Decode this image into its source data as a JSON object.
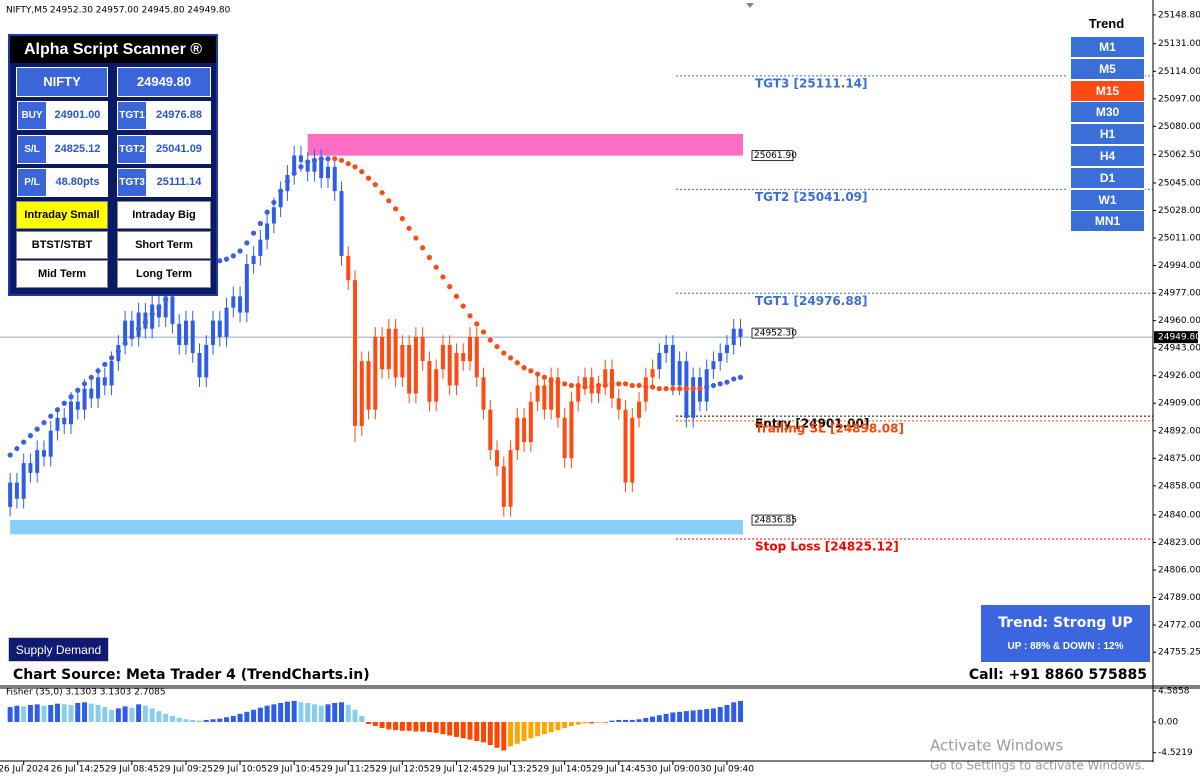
{
  "header": {
    "symbol": "NIFTY,M5",
    "ohlc": "24952.30 24957.00 24945.80 24949.80"
  },
  "scanner": {
    "title": "Alpha Script Scanner ®",
    "symbol": "NIFTY",
    "price": "24949.80",
    "rows": [
      [
        "BUY",
        "24901.00",
        "TGT1",
        "24976.88"
      ],
      [
        "S/L",
        "24825.12",
        "TGT2",
        "25041.09"
      ],
      [
        "P/L",
        "48.80pts",
        "TGT3",
        "25111.14"
      ]
    ],
    "buttons": [
      "Intraday Small",
      "Intraday Big",
      "BTST/STBT",
      "Short Term",
      "Mid Term",
      "Long Term"
    ],
    "active_button": 0,
    "active_color": "#ffff00"
  },
  "supply_demand_button": "Supply Demand",
  "trend_panel": {
    "title": "Trend",
    "timeframes": [
      "M1",
      "M5",
      "M15",
      "M30",
      "H1",
      "H4",
      "D1",
      "W1",
      "MN1"
    ],
    "active": 2,
    "color": "#3b6fd8",
    "active_color": "#ff4a12"
  },
  "trend_box": {
    "title": "Trend: Strong UP",
    "detail": "UP : 88% & DOWN : 12%"
  },
  "footer": {
    "source": "Chart Source: Meta Trader 4 (TrendCharts.in)",
    "call": "Call: +91 8860 575885"
  },
  "watermark": {
    "title": "Activate Windows",
    "detail": "Go to Settings to activate Windows."
  },
  "chart_data": [
    {
      "type": "candlestick",
      "xlim": [
        -1.5,
        169
      ],
      "ylim": [
        24735,
        25158
      ],
      "xticks": [
        {
          "value": 2,
          "label": "26 Jul 2024"
        },
        {
          "value": 10,
          "label": "26 Jul 14:25"
        },
        {
          "value": 18,
          "label": "29 Jul 08:45"
        },
        {
          "value": 26,
          "label": "29 Jul 09:25"
        },
        {
          "value": 34,
          "label": "29 Jul 10:05"
        },
        {
          "value": 42,
          "label": "29 Jul 10:45"
        },
        {
          "value": 50,
          "label": "29 Jul 11:25"
        },
        {
          "value": 58,
          "label": "29 Jul 12:05"
        },
        {
          "value": 66,
          "label": "29 Jul 12:45"
        },
        {
          "value": 74,
          "label": "29 Jul 13:25"
        },
        {
          "value": 82,
          "label": "29 Jul 14:05"
        },
        {
          "value": 90,
          "label": "29 Jul 14:45"
        },
        {
          "value": 98,
          "label": "30 Jul 09:00"
        },
        {
          "value": 106,
          "label": "30 Jul 09:40"
        }
      ],
      "yticks": [
        {
          "value": 25148.8,
          "label": "25148.80"
        },
        {
          "value": 25131,
          "label": "25131.00"
        },
        {
          "value": 25114,
          "label": "25114.00"
        },
        {
          "value": 25097,
          "label": "25097.00"
        },
        {
          "value": 25080,
          "label": "25080.00"
        },
        {
          "value": 25062.5,
          "label": "25062.50"
        },
        {
          "value": 25045,
          "label": "25045.00"
        },
        {
          "value": 25028,
          "label": "25028.00"
        },
        {
          "value": 25011,
          "label": "25011.00"
        },
        {
          "value": 24994,
          "label": "24994.00"
        },
        {
          "value": 24977,
          "label": "24977.00"
        },
        {
          "value": 24960,
          "label": "24960.00"
        },
        {
          "value": 24943,
          "label": "24943.00"
        },
        {
          "value": 24926,
          "label": "24926.00"
        },
        {
          "value": 24909,
          "label": "24909.00"
        },
        {
          "value": 24892,
          "label": "24892.00"
        },
        {
          "value": 24875,
          "label": "24875.00"
        },
        {
          "value": 24858,
          "label": "24858.00"
        },
        {
          "value": 24840,
          "label": "24840.00"
        },
        {
          "value": 24823,
          "label": "24823.00"
        },
        {
          "value": 24806,
          "label": "24806.00"
        },
        {
          "value": 24789,
          "label": "24789.00"
        },
        {
          "value": 24772,
          "label": "24772.00"
        },
        {
          "value": 24755.25,
          "label": "24755.25"
        }
      ],
      "series": [
        {
          "x0": 0,
          "color": "#2f5ce8",
          "open": [
            24845,
            24860,
            24850,
            24872,
            24866,
            24880,
            24876,
            24892,
            24900,
            24896,
            24910,
            24905,
            24918,
            24912,
            24925,
            24920,
            24935,
            24945,
            24960,
            24950,
            24965,
            24955,
            24970,
            24962,
            24975,
            24958,
            24945,
            24960,
            24940,
            24925,
            24945,
            24960,
            24950,
            24968,
            24975,
            24965,
            24995,
            25000,
            25010,
            25020,
            25030,
            25040,
            25050,
            25062,
            25058,
            25052,
            25060,
            25048,
            25055,
            25040
          ],
          "high": [
            24866,
            24866,
            24878,
            24878,
            24886,
            24886,
            24898,
            24906,
            24906,
            24916,
            24916,
            24924,
            24924,
            24931,
            24931,
            24941,
            24951,
            24966,
            24966,
            24971,
            24971,
            24976,
            24976,
            24981,
            24981,
            24964,
            24966,
            24966,
            24946,
            24951,
            24966,
            24966,
            24974,
            24981,
            24981,
            25001,
            25006,
            25016,
            25026,
            25036,
            25046,
            25056,
            25068,
            25068,
            25064,
            25066,
            25066,
            25061,
            25061,
            25046
          ],
          "low": [
            24839,
            24844,
            24844,
            24860,
            24860,
            24870,
            24870,
            24886,
            24890,
            24890,
            24899,
            24899,
            24906,
            24906,
            24914,
            24914,
            24929,
            24939,
            24944,
            24944,
            24949,
            24949,
            24956,
            24956,
            24952,
            24939,
            24939,
            24934,
            24919,
            24919,
            24939,
            24944,
            24944,
            24962,
            24959,
            24959,
            24989,
            24994,
            25004,
            25014,
            25024,
            25034,
            25044,
            25052,
            25046,
            25046,
            25042,
            25042,
            25034,
            24994
          ],
          "close": [
            24860,
            24850,
            24872,
            24866,
            24880,
            24876,
            24892,
            24900,
            24896,
            24910,
            24905,
            24918,
            24912,
            24925,
            24920,
            24935,
            24945,
            24960,
            24950,
            24965,
            24955,
            24970,
            24962,
            24975,
            24958,
            24945,
            24960,
            24940,
            24925,
            24945,
            24960,
            24950,
            24968,
            24975,
            24965,
            24995,
            25000,
            25010,
            25020,
            25030,
            25040,
            25050,
            25062,
            25058,
            25052,
            25060,
            25048,
            25055,
            25040,
            25000
          ]
        },
        {
          "x0": 50,
          "color": "#ff4a12",
          "open": [
            25000,
            24985,
            24895,
            24935,
            24905,
            24950,
            24930,
            24955,
            24925,
            24945,
            24915,
            24950,
            24935,
            24910,
            24930,
            24945,
            24920,
            24940,
            24935,
            24950,
            24925,
            24905,
            24880,
            24870,
            24845,
            24880,
            24900,
            24885,
            24910,
            24920,
            24905,
            24925,
            24900,
            24875,
            24910,
            24920,
            24925,
            24915,
            24920,
            24930,
            24912,
            24905,
            24860,
            24900,
            24910,
            24925
          ],
          "high": [
            25006,
            24991,
            24941,
            24941,
            24956,
            24956,
            24961,
            24961,
            24951,
            24951,
            24956,
            24956,
            24941,
            24936,
            24951,
            24951,
            24946,
            24946,
            24956,
            24956,
            24931,
            24911,
            24886,
            24876,
            24886,
            24906,
            24906,
            24916,
            24926,
            24926,
            24931,
            24931,
            24906,
            24916,
            24926,
            24931,
            24931,
            24926,
            24936,
            24936,
            24918,
            24911,
            24906,
            24916,
            24931,
            24936
          ],
          "low": [
            24979,
            24885,
            24889,
            24899,
            24899,
            24924,
            24924,
            24919,
            24919,
            24909,
            24909,
            24929,
            24904,
            24904,
            24924,
            24914,
            24914,
            24929,
            24929,
            24919,
            24899,
            24874,
            24864,
            24839,
            24839,
            24874,
            24879,
            24879,
            24904,
            24899,
            24899,
            24894,
            24869,
            24869,
            24904,
            24914,
            24909,
            24909,
            24914,
            24906,
            24899,
            24854,
            24854,
            24894,
            24904,
            24919
          ],
          "close": [
            24985,
            24895,
            24935,
            24905,
            24950,
            24930,
            24955,
            24925,
            24945,
            24915,
            24950,
            24935,
            24910,
            24930,
            24945,
            24920,
            24940,
            24935,
            24950,
            24925,
            24905,
            24880,
            24870,
            24845,
            24880,
            24900,
            24885,
            24910,
            24920,
            24905,
            24925,
            24900,
            24875,
            24910,
            24920,
            24925,
            24915,
            24920,
            24930,
            24912,
            24905,
            24860,
            24900,
            24910,
            24925,
            24930
          ]
        },
        {
          "x0": 96,
          "color": "#2f5ce8",
          "open": [
            24930,
            24940,
            24945,
            24920,
            24935,
            24900,
            24925,
            24910,
            24930,
            24935,
            24940,
            24945,
            24955
          ],
          "high": [
            24946,
            24951,
            24951,
            24941,
            24941,
            24931,
            24931,
            24936,
            24941,
            24946,
            24951,
            24961,
            24961
          ],
          "low": [
            24924,
            24934,
            24914,
            24914,
            24894,
            24894,
            24904,
            24904,
            24924,
            24929,
            24934,
            24939,
            24944
          ],
          "close": [
            24940,
            24945,
            24920,
            24935,
            24900,
            24925,
            24910,
            24930,
            24935,
            24940,
            24945,
            24955,
            24950
          ]
        }
      ],
      "dots": [
        {
          "x0": 0,
          "color": "#3a5fe0",
          "values": [
            24877,
            24881,
            24885,
            24889,
            24893,
            24897,
            24901,
            24905,
            24909,
            24913,
            24917,
            24921,
            24925,
            24929,
            24933,
            24937,
            24941,
            24946,
            24950,
            24955,
            24959,
            24964,
            24968,
            24973,
            24977,
            24982,
            24986,
            24990,
            24993,
            24995,
            24996,
            24997,
            24998,
            25000,
            25003,
            25008,
            25014,
            25020,
            25027,
            25033,
            25040,
            25046,
            25051,
            25055,
            25058,
            25059,
            25060,
            25060
          ]
        },
        {
          "x0": 48,
          "color": "#ff4a12",
          "values": [
            25060,
            25059,
            25057,
            25055,
            25052,
            25048,
            25044,
            25039,
            25034,
            25029,
            25023,
            25017,
            25011,
            25005,
            24999,
            24993,
            24987,
            24981,
            24975,
            24969,
            24963,
            24958,
            24953,
            24948,
            24944,
            24940,
            24937,
            24934,
            24931,
            24929,
            24927,
            24925,
            24923,
            24922,
            24921,
            24920,
            24920,
            24919,
            24919,
            24920,
            24920,
            24921,
            24921,
            24921,
            24920,
            24920,
            24919,
            24919,
            24918,
            24918,
            24918,
            24918,
            24918,
            24918,
            24918
          ]
        },
        {
          "x0": 103,
          "color": "#3a5fe0",
          "values": [
            24919,
            24920,
            24921,
            24922,
            24924,
            24925
          ]
        }
      ],
      "levels": [
        {
          "value": 25111.14,
          "label": "TGT3 [25111.14]",
          "color": "#3b6fd4"
        },
        {
          "value": 25041.09,
          "label": "TGT2 [25041.09]",
          "color": "#3b6fd4"
        },
        {
          "value": 24976.88,
          "label": "TGT1 [24976.88]",
          "color": "#3b6fd4"
        },
        {
          "value": 24901,
          "label": "Entry [24901.00]",
          "color": "#000000"
        },
        {
          "value": 24898.08,
          "label": "Trailing SL [24898.08]",
          "color": "#ff4500"
        },
        {
          "value": 24825.12,
          "label": "Stop Loss [24825.12]",
          "color": "#ff0000"
        }
      ],
      "zones": [
        {
          "x0": 44,
          "top": 25075.3,
          "bottom": 25061.9,
          "tag": "25061.90",
          "color": "#ff6ec4"
        },
        {
          "x0": 0,
          "top": 24836.85,
          "bottom": 24828,
          "tag": "24836.85",
          "color": "#87cefa"
        }
      ],
      "bid_tag": {
        "value": 24952.3,
        "label": "24952.30"
      },
      "last_price": {
        "value": 24949.8,
        "label": "24949.80"
      },
      "price_line_color": "#6f8fb0"
    },
    {
      "type": "bar",
      "title": "Fisher (35,0) 3.1303 3.1303 2.7085",
      "ylim": [
        -5.6,
        5.3
      ],
      "yticks": [
        4.5858,
        {
          "value": 0,
          "label": "0.00"
        },
        -4.5219
      ],
      "x0": 0,
      "values": [
        2.2,
        2.4,
        2.3,
        2.5,
        2.6,
        2.4,
        2.5,
        2.7,
        2.6,
        2.5,
        2.8,
        2.9,
        2.7,
        2.5,
        2.2,
        1.8,
        2.0,
        2.3,
        2.1,
        2.6,
        2.4,
        2.0,
        1.6,
        1.2,
        0.9,
        0.6,
        0.4,
        0.3,
        0.2,
        0.3,
        0.4,
        0.5,
        0.7,
        0.9,
        1.2,
        1.5,
        1.8,
        2.1,
        2.4,
        2.6,
        2.8,
        3.0,
        3.1,
        2.9,
        2.8,
        2.6,
        2.4,
        2.6,
        2.8,
        2.9,
        2.5,
        1.8,
        0.9,
        -0.3,
        -0.6,
        -0.9,
        -1.1,
        -1.2,
        -1.3,
        -1.3,
        -1.4,
        -1.4,
        -1.5,
        -1.6,
        -1.8,
        -2.0,
        -2.2,
        -2.4,
        -2.6,
        -2.8,
        -3.0,
        -3.4,
        -3.8,
        -4.2,
        -3.6,
        -3.2,
        -2.8,
        -2.4,
        -2.1,
        -1.8,
        -1.5,
        -1.2,
        -0.9,
        -0.6,
        -0.4,
        -0.2,
        -0.2,
        -0.1,
        -0.1,
        0.2,
        0.3,
        0.3,
        0.3,
        0.4,
        0.6,
        0.8,
        1.0,
        1.2,
        1.4,
        1.5,
        1.6,
        1.7,
        1.8,
        1.9,
        2.0,
        2.2,
        2.5,
        2.9,
        3.1
      ],
      "colors": {
        "up": "#2f5ce8",
        "up_weak": "#87ceeb",
        "down": "#ff4500",
        "down_weak": "#ffa500"
      }
    }
  ]
}
